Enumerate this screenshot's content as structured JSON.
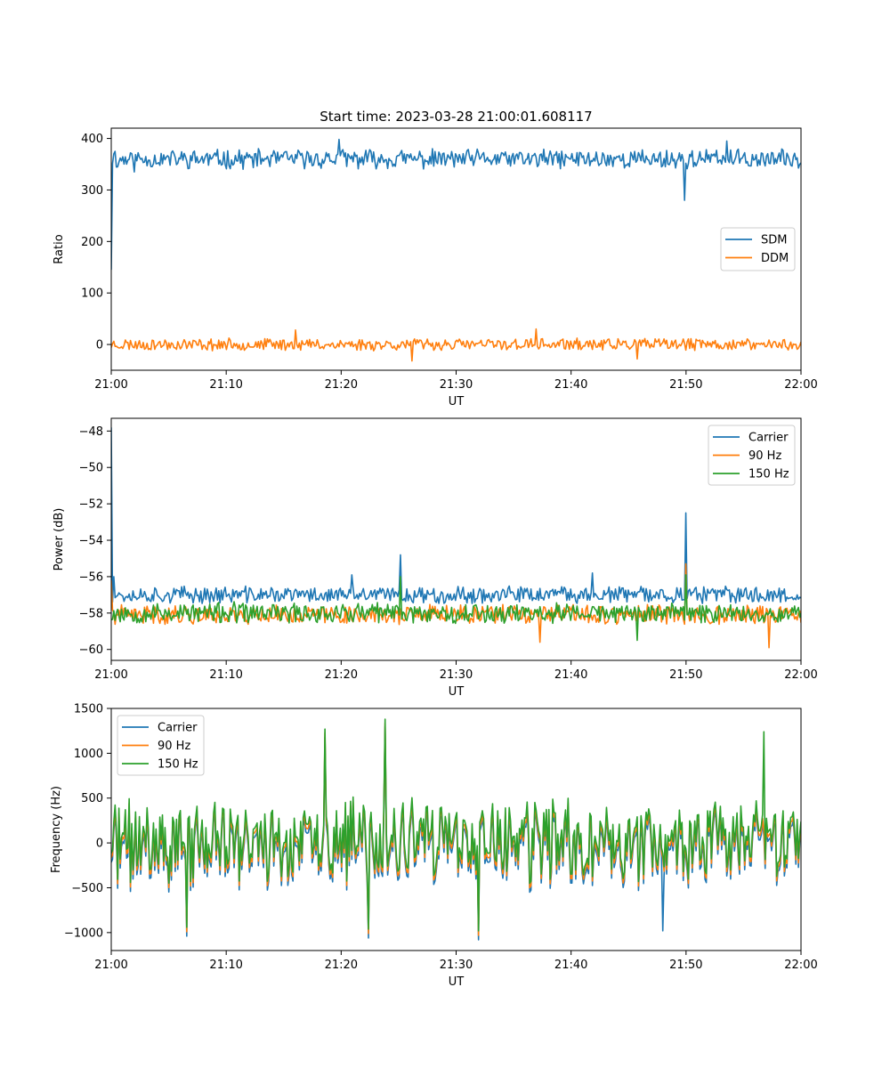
{
  "chart_data": [
    {
      "type": "line",
      "title": "Start time: 2023-03-28 21:00:01.608117",
      "xlabel": "UT",
      "ylabel": "Ratio",
      "xlim": [
        "21:00",
        "22:00"
      ],
      "xticks": [
        "21:00",
        "21:10",
        "21:20",
        "21:30",
        "21:40",
        "21:50",
        "22:00"
      ],
      "ylim": [
        -50,
        420
      ],
      "yticks": [
        0,
        100,
        200,
        300,
        400
      ],
      "grid": false,
      "legend": "center-right",
      "series": [
        {
          "name": "SDM",
          "color": "#1f77b4",
          "gen": {
            "seed": 11,
            "base": 360,
            "amp": 16,
            "spikes": [
              [
                0.0,
                145
              ],
              [
                0.3,
                375
              ],
              [
                0.6,
                345
              ],
              [
                2.0,
                335
              ],
              [
                19.8,
                398
              ],
              [
                49.9,
                280
              ],
              [
                53.5,
                395
              ]
            ]
          }
        },
        {
          "name": "DDM",
          "color": "#ff7f0e",
          "gen": {
            "seed": 23,
            "base": 0,
            "amp": 10,
            "spikes": [
              [
                16.0,
                28
              ],
              [
                26.2,
                -32
              ],
              [
                37.0,
                30
              ],
              [
                45.8,
                -28
              ]
            ]
          }
        }
      ]
    },
    {
      "type": "line",
      "title": "",
      "xlabel": "UT",
      "ylabel": "Power (dB)",
      "xlim": [
        "21:00",
        "22:00"
      ],
      "xticks": [
        "21:00",
        "21:10",
        "21:20",
        "21:30",
        "21:40",
        "21:50",
        "22:00"
      ],
      "ylim": [
        -60.6,
        -47.3
      ],
      "yticks": [
        -60,
        -58,
        -56,
        -54,
        -52,
        -50,
        -48
      ],
      "grid": false,
      "legend": "top-right",
      "series": [
        {
          "name": "Carrier",
          "color": "#1f77b4",
          "gen": {
            "seed": 37,
            "base": -57.0,
            "amp": 0.4,
            "spikes": [
              [
                0.0,
                -47.8
              ],
              [
                0.25,
                -56.0
              ],
              [
                20.9,
                -55.9
              ],
              [
                25.2,
                -54.8
              ],
              [
                41.8,
                -55.8
              ],
              [
                50.0,
                -52.5
              ]
            ]
          }
        },
        {
          "name": "90 Hz",
          "color": "#ff7f0e",
          "gen": {
            "seed": 41,
            "base": -58.1,
            "amp": 0.45,
            "spikes": [
              [
                0.0,
                -56.2
              ],
              [
                37.3,
                -59.6
              ],
              [
                50.0,
                -55.3
              ],
              [
                57.2,
                -59.9
              ]
            ]
          }
        },
        {
          "name": "150 Hz",
          "color": "#2ca02c",
          "gen": {
            "seed": 53,
            "base": -58.0,
            "amp": 0.5,
            "spikes": [
              [
                25.2,
                -56.0
              ],
              [
                45.8,
                -59.5
              ],
              [
                50.0,
                -55.9
              ]
            ]
          }
        }
      ]
    },
    {
      "type": "line",
      "title": "",
      "xlabel": "UT",
      "ylabel": "Frequency (Hz)",
      "xlim": [
        "21:00",
        "22:00"
      ],
      "xticks": [
        "21:00",
        "21:10",
        "21:20",
        "21:30",
        "21:40",
        "21:50",
        "22:00"
      ],
      "ylim": [
        -1200,
        1500
      ],
      "yticks": [
        -1000,
        -500,
        0,
        500,
        1000,
        1500
      ],
      "grid": false,
      "legend": "top-left",
      "series": [
        {
          "name": "Carrier",
          "color": "#1f77b4",
          "gen": {
            "seed": 71,
            "base": -80,
            "amp": 400,
            "spikes": [
              [
                6.6,
                -1040
              ],
              [
                18.6,
                1180
              ],
              [
                22.4,
                -1060
              ],
              [
                23.8,
                1300
              ],
              [
                32.0,
                -1080
              ],
              [
                48.0,
                -980
              ]
            ]
          }
        },
        {
          "name": "90 Hz",
          "color": "#ff7f0e",
          "gen": {
            "seed": 71,
            "base": -30,
            "amp": 400,
            "spikes": [
              [
                6.6,
                -990
              ],
              [
                18.6,
                1230
              ],
              [
                22.4,
                -1010
              ],
              [
                23.8,
                1340
              ],
              [
                32.0,
                -1030
              ]
            ]
          }
        },
        {
          "name": "150 Hz",
          "color": "#2ca02c",
          "gen": {
            "seed": 71,
            "base": 20,
            "amp": 400,
            "spikes": [
              [
                6.6,
                -940
              ],
              [
                18.6,
                1270
              ],
              [
                22.4,
                -960
              ],
              [
                23.8,
                1380
              ],
              [
                32.0,
                -980
              ],
              [
                56.8,
                1240
              ]
            ]
          }
        }
      ]
    }
  ]
}
